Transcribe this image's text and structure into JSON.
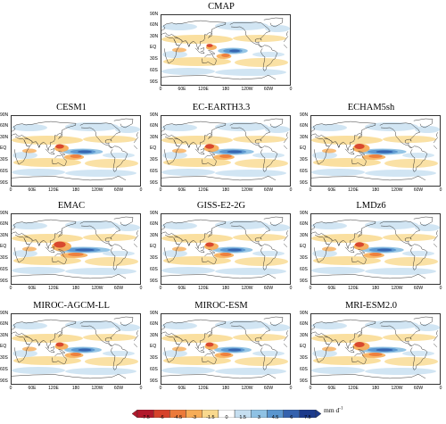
{
  "panels": [
    {
      "title": "CMAP"
    },
    {
      "title": "CESM1"
    },
    {
      "title": "EC-EARTH3.3"
    },
    {
      "title": "ECHAM5sh"
    },
    {
      "title": "EMAC"
    },
    {
      "title": "GISS-E2-2G"
    },
    {
      "title": "LMDz6"
    },
    {
      "title": "MIROC-AGCM-LL"
    },
    {
      "title": "MIROC-ESM"
    },
    {
      "title": "MRI-ESM2.0"
    }
  ],
  "lat_labels": [
    "90N",
    "60N",
    "30N",
    "EQ",
    "30S",
    "60S",
    "90S"
  ],
  "lon_labels": [
    "0",
    "60E",
    "120E",
    "180",
    "120W",
    "60W",
    "0"
  ],
  "colorbar": {
    "ticks": [
      "-7.5",
      "-6",
      "-4.5",
      "-3",
      "-1.5",
      "0",
      "1.5",
      "3",
      "4.5",
      "6",
      "7.5"
    ],
    "units_label": "mm d",
    "units_exponent": "-1",
    "colors": [
      "#b2182b",
      "#d6422b",
      "#ec7a3a",
      "#f7ad57",
      "#f9d98e",
      "#ffffff",
      "#c6dff0",
      "#8fc2e4",
      "#5a96cf",
      "#3461ad",
      "#1c3a8c"
    ]
  }
}
